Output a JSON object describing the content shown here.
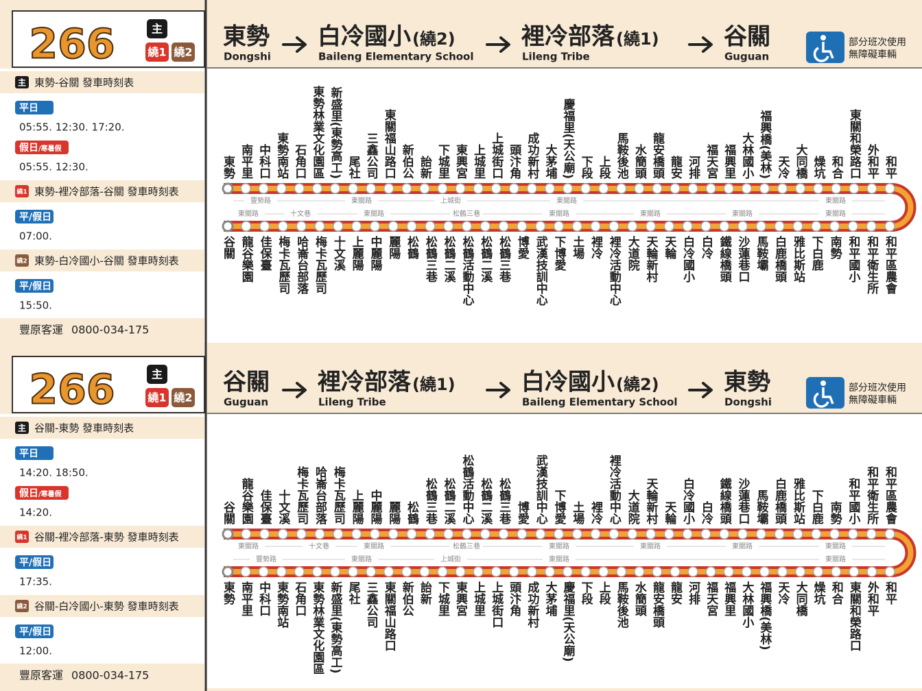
{
  "panels": [
    {
      "route": "266",
      "badges": [
        "主",
        "繞1",
        "繞2"
      ],
      "header": {
        "stops": [
          {
            "zh": "東勢",
            "en": "Dongshi"
          },
          {
            "zh": "白冷國小",
            "suffix": "(繞2)",
            "en": "Baileng Elementary School"
          },
          {
            "zh": "裡冷部落",
            "suffix": "(繞1)",
            "en": "Lileng Tribe"
          },
          {
            "zh": "谷關",
            "en": "Guguan"
          }
        ],
        "access": [
          "部分班次使用",
          "無障礙車輛"
        ]
      },
      "schedules": [
        {
          "badge": "主",
          "title": "東勢-谷關  發車時刻表",
          "groups": [
            {
              "label": "平日",
              "times": "05:55. 12:30. 17:20."
            },
            {
              "label": "假日",
              "note": "/寒暑假",
              "times": "05:55. 12:30."
            }
          ]
        },
        {
          "badge": "繞1",
          "title": "東勢-裡冷部落-谷關  發車時刻表",
          "groups": [
            {
              "label": "平/假日",
              "times": "07:00."
            }
          ]
        },
        {
          "badge": "繞2",
          "title": "東勢-白冷國小-谷關  發車時刻表",
          "groups": [
            {
              "label": "平/假日",
              "times": "15:50."
            }
          ]
        }
      ],
      "company": "豐原客運",
      "phone": "0800-034-175",
      "top_stops": [
        "東勢",
        "南平里",
        "中科口",
        "東勢南站",
        "石角口",
        "東勢林業文化園區",
        "新盛里(東勢高工)",
        "尾社",
        "三鑫公司",
        "東關福山路口",
        "新伯公",
        "詒新",
        "下城里",
        "東興宮",
        "上城里",
        "上城街口",
        "頭汴角",
        "成功新村",
        "大茅埔",
        "慶福里(天公廟)",
        "下段",
        "上段",
        "馬鞍後池",
        "水簡頭",
        "龍安橋頭",
        "龍安",
        "河排",
        "福天宮",
        "福興里",
        "大林國小",
        "福興橋(美林)",
        "天冷",
        "大同橋",
        "燥坑",
        "和合",
        "東關和榮路口",
        "外和平",
        "和平"
      ],
      "bottom_stops": [
        "谷關",
        "龍谷樂園",
        "佳保臺",
        "梅卡瓦歷司",
        "哈崙台部落",
        "梅卡瓦歷司",
        "十文溪",
        "上麗陽",
        "中麗陽",
        "麗陽",
        "松鶴",
        "松鶴三巷",
        "松鶴二溪",
        "松鶴活動中心",
        "松鶴二溪",
        "松鶴三巷",
        "博愛",
        "武漢技訓中心",
        "下博愛",
        "土場",
        "裡冷",
        "裡冷活動中心",
        "大道院",
        "天輪新村",
        "天輪",
        "白冷國小",
        "白冷",
        "鐵線橋頭",
        "沙蓮巷口",
        "馬鞍壩",
        "白鹿橋頭",
        "雅比斯站",
        "下白鹿",
        "南勢",
        "和平國小",
        "和平衛生所",
        "和平區農會"
      ],
      "top_roads": [
        "豐勢路",
        "東關路",
        "上城街",
        "東關路",
        "東關路"
      ],
      "bottom_roads": [
        "東關路",
        "十文巷",
        "東關路",
        "松鶴三巷",
        "東關路",
        "東關路",
        "東關路",
        "東關路"
      ]
    },
    {
      "route": "266",
      "badges": [
        "主",
        "繞1",
        "繞2"
      ],
      "header": {
        "stops": [
          {
            "zh": "谷關",
            "en": "Guguan"
          },
          {
            "zh": "裡冷部落",
            "suffix": "(繞1)",
            "en": "Lileng Tribe"
          },
          {
            "zh": "白冷國小",
            "suffix": "(繞2)",
            "en": "Baileng Elementary School"
          },
          {
            "zh": "東勢",
            "en": "Dongshi"
          }
        ],
        "access": [
          "部分班次使用",
          "無障礙車輛"
        ]
      },
      "schedules": [
        {
          "badge": "主",
          "title": "谷關-東勢  發車時刻表",
          "groups": [
            {
              "label": "平日",
              "times": "14:20. 18:50."
            },
            {
              "label": "假日",
              "note": "/寒暑假",
              "times": "14:20."
            }
          ]
        },
        {
          "badge": "繞1",
          "title": "谷關-裡冷部落-東勢  發車時刻表",
          "groups": [
            {
              "label": "平/假日",
              "times": "17:35."
            }
          ]
        },
        {
          "badge": "繞2",
          "title": "谷關-白冷國小-東勢  發車時刻表",
          "groups": [
            {
              "label": "平/假日",
              "times": "12:00."
            }
          ]
        }
      ],
      "company": "豐原客運",
      "phone": "0800-034-175",
      "top_stops": [
        "谷關",
        "龍谷樂園",
        "佳保臺",
        "十文溪",
        "梅卡瓦歷司",
        "哈崙台部落",
        "梅卡瓦歷司",
        "上麗陽",
        "中麗陽",
        "麗陽",
        "松鶴",
        "松鶴三巷",
        "松鶴二溪",
        "松鶴活動中心",
        "松鶴二溪",
        "松鶴三巷",
        "博愛",
        "武漢技訓中心",
        "下博愛",
        "土場",
        "裡冷",
        "裡冷活動中心",
        "大道院",
        "天輪新村",
        "天輪",
        "白冷國小",
        "白冷",
        "鐵線橋頭",
        "沙蓮巷口",
        "馬鞍壩",
        "白鹿橋頭",
        "雅比斯站",
        "下白鹿",
        "南勢",
        "和平國小",
        "和平衛生所",
        "和平區農會"
      ],
      "bottom_stops": [
        "東勢",
        "南平里",
        "中科口",
        "東勢南站",
        "石角口",
        "東勢林業文化園區",
        "新盛里(東勢高工)",
        "尾社",
        "三鑫公司",
        "東關福山路口",
        "新伯公",
        "詒新",
        "下城里",
        "東興宮",
        "上城里",
        "上城街口",
        "頭汴角",
        "成功新村",
        "大茅埔",
        "慶福里(天公廟)",
        "下段",
        "上段",
        "馬鞍後池",
        "水簡頭",
        "龍安橋頭",
        "龍安",
        "河排",
        "福天宮",
        "福興里",
        "大林國小",
        "福興橋(美林)",
        "天冷",
        "大同橋",
        "燥坑",
        "和合",
        "東關和榮路口",
        "外和平",
        "和平"
      ],
      "top_roads": [
        "東關路",
        "十文巷",
        "東關路",
        "松鶴三巷",
        "東關路",
        "東關路",
        "東關路",
        "東關路"
      ],
      "bottom_roads": [
        "豐勢路",
        "東關路",
        "上城街",
        "東關路",
        "東關路"
      ]
    }
  ]
}
